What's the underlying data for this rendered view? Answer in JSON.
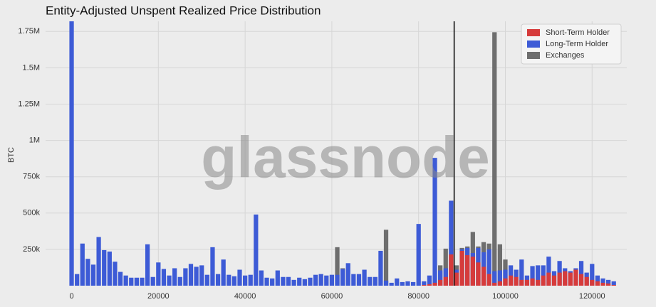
{
  "chart_data": {
    "type": "bar",
    "title": "Entity-Adjusted Unspent Realized Price Distribution",
    "y_label": "BTC",
    "watermark": "glassnode",
    "xlim": [
      -6000,
      128000
    ],
    "ylim": [
      0,
      1820000
    ],
    "xticks": [
      0,
      20000,
      40000,
      60000,
      80000,
      100000,
      120000
    ],
    "yticks": [
      {
        "value": 250000,
        "label": "250k"
      },
      {
        "value": 500000,
        "label": "500k"
      },
      {
        "value": 750000,
        "label": "750k"
      },
      {
        "value": 1000000,
        "label": "1M"
      },
      {
        "value": 1250000,
        "label": "1.25M"
      },
      {
        "value": 1500000,
        "label": "1.5M"
      },
      {
        "value": 1750000,
        "label": "1.75M"
      }
    ],
    "grid": true,
    "legend": "upper right",
    "vline": 88200,
    "x": [
      0,
      1250,
      2500,
      3750,
      5000,
      6250,
      7500,
      8750,
      10000,
      11250,
      12500,
      13750,
      15000,
      16250,
      17500,
      18750,
      20000,
      21250,
      22500,
      23750,
      25000,
      26250,
      27500,
      28750,
      30000,
      31250,
      32500,
      33750,
      35000,
      36250,
      37500,
      38750,
      40000,
      41250,
      42500,
      43750,
      45000,
      46250,
      47500,
      48750,
      50000,
      51250,
      52500,
      53750,
      55000,
      56250,
      57500,
      58750,
      60000,
      61250,
      62500,
      63750,
      65000,
      66250,
      67500,
      68750,
      70000,
      71250,
      72500,
      73750,
      75000,
      76250,
      77500,
      78750,
      80000,
      81250,
      82500,
      83750,
      85000,
      86250,
      87500,
      88750,
      90000,
      91250,
      92500,
      93750,
      95000,
      96250,
      97500,
      98750,
      100000,
      101250,
      102500,
      103750,
      105000,
      106250,
      107500,
      108750,
      110000,
      111250,
      112500,
      113750,
      115000,
      116250,
      117500,
      118750,
      120000,
      121250,
      122500,
      123750,
      125000
    ],
    "series": [
      {
        "name": "Short-Term Holder",
        "color": "#d63b3b",
        "values": [
          0,
          0,
          0,
          0,
          0,
          0,
          0,
          0,
          0,
          0,
          0,
          0,
          0,
          0,
          0,
          0,
          0,
          0,
          0,
          0,
          0,
          0,
          0,
          0,
          0,
          0,
          0,
          0,
          0,
          0,
          0,
          0,
          0,
          0,
          0,
          0,
          0,
          0,
          0,
          0,
          0,
          0,
          0,
          0,
          0,
          0,
          0,
          0,
          0,
          0,
          0,
          0,
          0,
          0,
          0,
          0,
          0,
          0,
          0,
          0,
          0,
          0,
          0,
          0,
          0,
          5000,
          10000,
          20000,
          40000,
          60000,
          215000,
          90000,
          240000,
          210000,
          200000,
          160000,
          130000,
          80000,
          20000,
          30000,
          50000,
          70000,
          60000,
          40000,
          40000,
          50000,
          40000,
          70000,
          90000,
          70000,
          90000,
          100000,
          90000,
          110000,
          80000,
          60000,
          40000,
          30000,
          20000,
          15000,
          5000
        ]
      },
      {
        "name": "Long-Term Holder",
        "color": "#3d5bd6",
        "values": [
          1820000,
          80000,
          290000,
          185000,
          145000,
          335000,
          245000,
          235000,
          165000,
          95000,
          70000,
          55000,
          55000,
          55000,
          285000,
          60000,
          160000,
          115000,
          70000,
          120000,
          60000,
          120000,
          150000,
          130000,
          140000,
          75000,
          265000,
          80000,
          180000,
          75000,
          65000,
          110000,
          70000,
          75000,
          490000,
          105000,
          55000,
          50000,
          105000,
          60000,
          60000,
          40000,
          55000,
          45000,
          55000,
          75000,
          80000,
          70000,
          75000,
          75000,
          115000,
          155000,
          80000,
          80000,
          110000,
          60000,
          60000,
          240000,
          35000,
          20000,
          50000,
          25000,
          30000,
          25000,
          425000,
          30000,
          70000,
          880000,
          105000,
          120000,
          585000,
          110000,
          250000,
          260000,
          225000,
          260000,
          230000,
          250000,
          100000,
          105000,
          110000,
          140000,
          110000,
          180000,
          70000,
          135000,
          140000,
          140000,
          200000,
          100000,
          170000,
          120000,
          100000,
          120000,
          170000,
          90000,
          150000,
          70000,
          50000,
          40000,
          30000
        ]
      },
      {
        "name": "Exchanges",
        "color": "#6e6e6e",
        "values": [
          0,
          0,
          0,
          0,
          0,
          0,
          0,
          0,
          0,
          0,
          0,
          0,
          0,
          0,
          0,
          0,
          0,
          0,
          0,
          0,
          0,
          0,
          0,
          0,
          0,
          0,
          0,
          0,
          0,
          0,
          0,
          0,
          0,
          0,
          0,
          0,
          0,
          0,
          0,
          0,
          0,
          0,
          0,
          0,
          0,
          0,
          0,
          0,
          0,
          265000,
          120000,
          0,
          0,
          0,
          0,
          0,
          0,
          0,
          385000,
          0,
          0,
          0,
          0,
          0,
          0,
          0,
          0,
          0,
          140000,
          255000,
          260000,
          140000,
          260000,
          270000,
          370000,
          270000,
          300000,
          290000,
          1745000,
          285000,
          180000,
          0,
          0,
          0,
          0,
          0,
          0,
          0,
          0,
          0,
          0,
          0,
          0,
          0,
          0,
          0,
          0,
          0,
          0,
          0,
          0
        ]
      }
    ]
  }
}
